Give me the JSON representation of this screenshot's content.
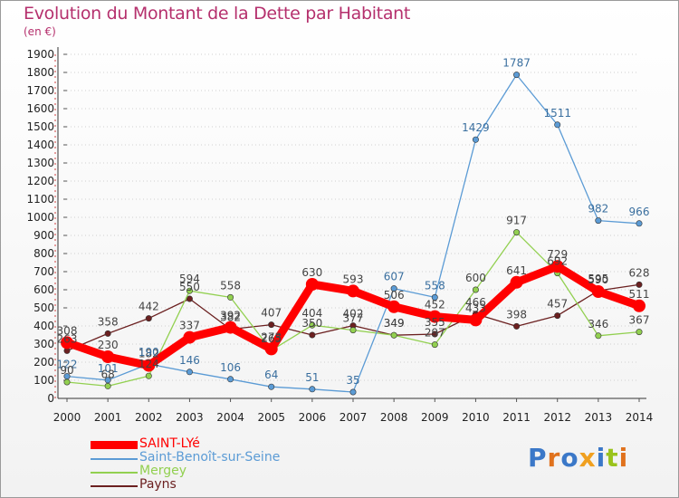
{
  "title": "Evolution du Montant de la Dette par Habitant",
  "subtitle": "(en €)",
  "logo_text": "Proxiti",
  "colors": {
    "title": "#b5306d",
    "grid": "#d0d0d0",
    "logo_letters": [
      "#3b78c8",
      "#e0721d",
      "#3b78c8",
      "#f0a020",
      "#3b78c8",
      "#9ac31c",
      "#e0721d"
    ]
  },
  "chart_data": {
    "type": "line",
    "title": "Evolution du Montant de la Dette par Habitant",
    "ylabel": "(en €)",
    "x": [
      "2000",
      "2001",
      "2002",
      "2003",
      "2004",
      "2005",
      "2006",
      "2007",
      "2008",
      "2009",
      "2010",
      "2011",
      "2012",
      "2013",
      "2014"
    ],
    "y_ticks": [
      "0",
      "100",
      "200",
      "300",
      "400",
      "500",
      "600",
      "700",
      "800",
      "900",
      "1000",
      "1100",
      "1200",
      "1300",
      "1400",
      "1500",
      "1600",
      "1700",
      "1800",
      "1900"
    ],
    "ylim": [
      0,
      1900
    ],
    "grid": "horizontal dotted",
    "legend_position": "bottom-left",
    "series": [
      {
        "name": "SAINT-LYé",
        "color": "#ff0000",
        "values": [
          308,
          230,
          182,
          337,
          392,
          273,
          630,
          593,
          506,
          452,
          433,
          641,
          729,
          590,
          511
        ]
      },
      {
        "name": "Saint-Benoît-sur-Seine",
        "color": "#5b9bd5",
        "values": [
          122,
          101,
          190,
          146,
          106,
          64,
          51,
          35,
          607,
          558,
          1429,
          1787,
          1511,
          982,
          966
        ]
      },
      {
        "name": "Mergey",
        "color": "#92d050",
        "values": [
          90,
          68,
          124,
          594,
          558,
          265,
          404,
          377,
          349,
          297,
          600,
          917,
          692,
          346,
          367
        ]
      },
      {
        "name": "Payns",
        "color": "#6b2020",
        "values": [
          263,
          358,
          442,
          550,
          382,
          407,
          350,
          402,
          349,
          355,
          466,
          398,
          457,
          595,
          628
        ]
      }
    ],
    "labels": [
      {
        "text": "308",
        "year": "2000",
        "value": 308,
        "series": "SAINT-LYé",
        "pos": "above"
      },
      {
        "text": "230",
        "year": "2001",
        "value": 230,
        "series": "SAINT-LYé",
        "pos": "above"
      },
      {
        "text": "182",
        "year": "2002",
        "value": 182,
        "series": "SAINT-LYé",
        "pos": "above"
      },
      {
        "text": "337",
        "year": "2003",
        "value": 337,
        "series": "SAINT-LYé",
        "pos": "above"
      },
      {
        "text": "392",
        "year": "2004",
        "value": 392,
        "series": "SAINT-LYé",
        "pos": "above"
      },
      {
        "text": "273",
        "year": "2005",
        "value": 273,
        "series": "SAINT-LYé",
        "pos": "above"
      },
      {
        "text": "630",
        "year": "2006",
        "value": 630,
        "series": "SAINT-LYé",
        "pos": "above"
      },
      {
        "text": "593",
        "year": "2007",
        "value": 593,
        "series": "SAINT-LYé",
        "pos": "above"
      },
      {
        "text": "506",
        "year": "2008",
        "value": 506,
        "series": "SAINT-LYé",
        "pos": "above"
      },
      {
        "text": "452",
        "year": "2009",
        "value": 452,
        "series": "SAINT-LYé",
        "pos": "above"
      },
      {
        "text": "433",
        "year": "2010",
        "value": 433,
        "series": "SAINT-LYé",
        "pos": "above"
      },
      {
        "text": "641",
        "year": "2011",
        "value": 641,
        "series": "SAINT-LYé",
        "pos": "above"
      },
      {
        "text": "729",
        "year": "2012",
        "value": 729,
        "series": "SAINT-LYé",
        "pos": "above"
      },
      {
        "text": "590",
        "year": "2013",
        "value": 590,
        "series": "SAINT-LYé",
        "pos": "above"
      },
      {
        "text": "511",
        "year": "2014",
        "value": 511,
        "series": "SAINT-LYé",
        "pos": "above"
      },
      {
        "text": "122",
        "year": "2000",
        "value": 122,
        "series": "Saint-Benoît-sur-Seine",
        "pos": "above"
      },
      {
        "text": "101",
        "year": "2001",
        "value": 101,
        "series": "Saint-Benoît-sur-Seine",
        "pos": "above"
      },
      {
        "text": "190",
        "year": "2002",
        "value": 190,
        "series": "Saint-Benoît-sur-Seine",
        "pos": "above"
      },
      {
        "text": "146",
        "year": "2003",
        "value": 146,
        "series": "Saint-Benoît-sur-Seine",
        "pos": "above"
      },
      {
        "text": "106",
        "year": "2004",
        "value": 106,
        "series": "Saint-Benoît-sur-Seine",
        "pos": "above"
      },
      {
        "text": "64",
        "year": "2005",
        "value": 64,
        "series": "Saint-Benoît-sur-Seine",
        "pos": "above"
      },
      {
        "text": "51",
        "year": "2006",
        "value": 51,
        "series": "Saint-Benoît-sur-Seine",
        "pos": "above"
      },
      {
        "text": "35",
        "year": "2007",
        "value": 35,
        "series": "Saint-Benoît-sur-Seine",
        "pos": "above"
      },
      {
        "text": "607",
        "year": "2008",
        "value": 607,
        "series": "Saint-Benoît-sur-Seine",
        "pos": "above"
      },
      {
        "text": "558",
        "year": "2009",
        "value": 558,
        "series": "Saint-Benoît-sur-Seine",
        "pos": "above"
      },
      {
        "text": "1429",
        "year": "2010",
        "value": 1429,
        "series": "Saint-Benoît-sur-Seine",
        "pos": "above"
      },
      {
        "text": "1787",
        "year": "2011",
        "value": 1787,
        "series": "Saint-Benoît-sur-Seine",
        "pos": "above"
      },
      {
        "text": "1511",
        "year": "2012",
        "value": 1511,
        "series": "Saint-Benoît-sur-Seine",
        "pos": "above"
      },
      {
        "text": "982",
        "year": "2013",
        "value": 982,
        "series": "Saint-Benoît-sur-Seine",
        "pos": "above"
      },
      {
        "text": "966",
        "year": "2014",
        "value": 966,
        "series": "Saint-Benoît-sur-Seine",
        "pos": "above"
      },
      {
        "text": "90",
        "year": "2000",
        "value": 90,
        "series": "Mergey",
        "pos": "above"
      },
      {
        "text": "68",
        "year": "2001",
        "value": 68,
        "series": "Mergey",
        "pos": "above"
      },
      {
        "text": "124",
        "year": "2002",
        "value": 124,
        "series": "Mergey",
        "pos": "above"
      },
      {
        "text": "594",
        "year": "2003",
        "value": 594,
        "series": "Mergey",
        "pos": "above"
      },
      {
        "text": "558",
        "year": "2004",
        "value": 558,
        "series": "Mergey",
        "pos": "above"
      },
      {
        "text": "265",
        "year": "2005",
        "value": 265,
        "series": "Mergey",
        "pos": "above"
      },
      {
        "text": "404",
        "year": "2006",
        "value": 404,
        "series": "Mergey",
        "pos": "above"
      },
      {
        "text": "377",
        "year": "2007",
        "value": 377,
        "series": "Mergey",
        "pos": "above"
      },
      {
        "text": "349",
        "year": "2008",
        "value": 349,
        "series": "Mergey",
        "pos": "above"
      },
      {
        "text": "297",
        "year": "2009",
        "value": 297,
        "series": "Mergey",
        "pos": "above"
      },
      {
        "text": "600",
        "year": "2010",
        "value": 600,
        "series": "Mergey",
        "pos": "above"
      },
      {
        "text": "917",
        "year": "2011",
        "value": 917,
        "series": "Mergey",
        "pos": "above"
      },
      {
        "text": "692",
        "year": "2012",
        "value": 692,
        "series": "Mergey",
        "pos": "above"
      },
      {
        "text": "346",
        "year": "2013",
        "value": 346,
        "series": "Mergey",
        "pos": "above"
      },
      {
        "text": "367",
        "year": "2014",
        "value": 367,
        "series": "Mergey",
        "pos": "above"
      },
      {
        "text": "263",
        "year": "2000",
        "value": 263,
        "series": "Payns",
        "pos": "above"
      },
      {
        "text": "358",
        "year": "2001",
        "value": 358,
        "series": "Payns",
        "pos": "above"
      },
      {
        "text": "442",
        "year": "2002",
        "value": 442,
        "series": "Payns",
        "pos": "above"
      },
      {
        "text": "550",
        "year": "2003",
        "value": 550,
        "series": "Payns",
        "pos": "above"
      },
      {
        "text": "382",
        "year": "2004",
        "value": 382,
        "series": "Payns",
        "pos": "above"
      },
      {
        "text": "407",
        "year": "2005",
        "value": 407,
        "series": "Payns",
        "pos": "above"
      },
      {
        "text": "350",
        "year": "2006",
        "value": 350,
        "series": "Payns",
        "pos": "above"
      },
      {
        "text": "402",
        "year": "2007",
        "value": 402,
        "series": "Payns",
        "pos": "above"
      },
      {
        "text": "349",
        "year": "2008",
        "value": 349,
        "series": "Payns",
        "pos": "above"
      },
      {
        "text": "355",
        "year": "2009",
        "value": 355,
        "series": "Payns",
        "pos": "above"
      },
      {
        "text": "466",
        "year": "2010",
        "value": 466,
        "series": "Payns",
        "pos": "above"
      },
      {
        "text": "398",
        "year": "2011",
        "value": 398,
        "series": "Payns",
        "pos": "above"
      },
      {
        "text": "457",
        "year": "2012",
        "value": 457,
        "series": "Payns",
        "pos": "above"
      },
      {
        "text": "595",
        "year": "2013",
        "value": 595,
        "series": "Payns",
        "pos": "above"
      },
      {
        "text": "628",
        "year": "2014",
        "value": 628,
        "series": "Payns",
        "pos": "above"
      }
    ]
  }
}
